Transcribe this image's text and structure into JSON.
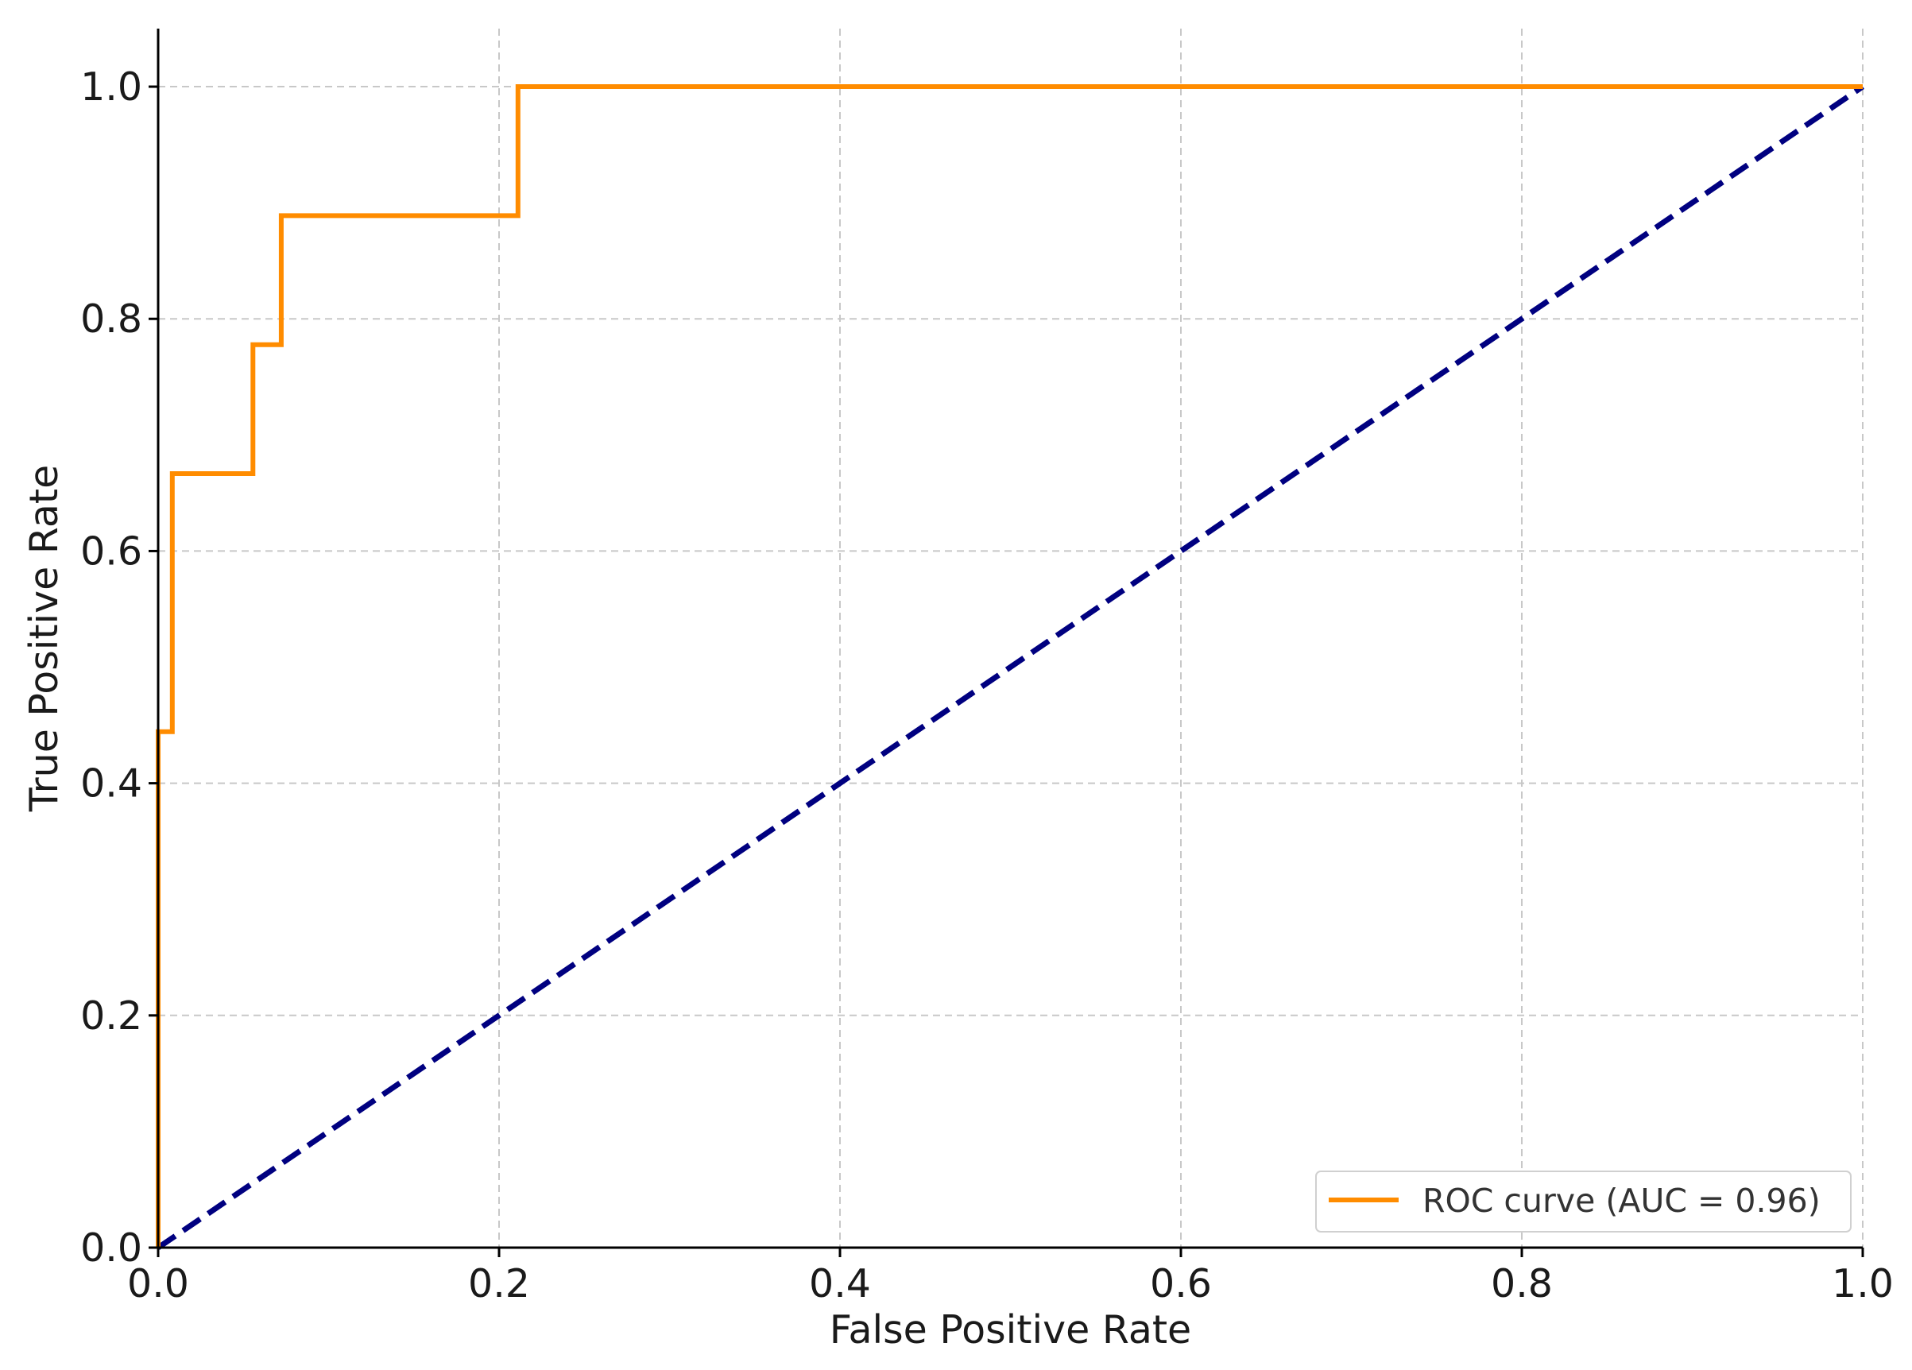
{
  "chart_data": {
    "type": "line",
    "title": "",
    "xlabel": "False Positive Rate",
    "ylabel": "True Positive Rate",
    "xlim": [
      0.0,
      1.0
    ],
    "ylim": [
      0.0,
      1.05
    ],
    "xticks": [
      "0.0",
      "0.2",
      "0.4",
      "0.6",
      "0.8",
      "1.0"
    ],
    "yticks": [
      "0.0",
      "0.2",
      "0.4",
      "0.6",
      "0.8",
      "1.0"
    ],
    "grid": true,
    "legend_position": "lower-right",
    "series": [
      {
        "name": "ROC curve (AUC = 0.96)",
        "color": "#ff8c00",
        "style": "solid",
        "x": [
          0.0,
          0.0,
          0.0,
          0.0083,
          0.0083,
          0.0556,
          0.0556,
          0.0722,
          0.0722,
          0.2111,
          0.2111,
          1.0
        ],
        "y": [
          0.0,
          0.0,
          0.4444,
          0.4444,
          0.6667,
          0.6667,
          0.7778,
          0.7778,
          0.8889,
          0.8889,
          1.0,
          1.0
        ]
      },
      {
        "color": "#000080",
        "style": "dashed",
        "x": [
          0.0,
          1.0
        ],
        "y": [
          0.0,
          1.0
        ]
      }
    ]
  }
}
